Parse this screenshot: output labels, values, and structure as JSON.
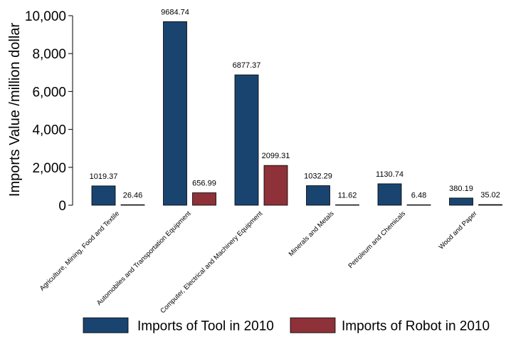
{
  "chart_data": {
    "type": "bar",
    "title": "",
    "xlabel": "",
    "ylabel": "Imports Value /million dollar",
    "ylim": [
      0,
      10000
    ],
    "yticks": [
      0,
      2000,
      4000,
      6000,
      8000,
      10000
    ],
    "ytick_labels": [
      "0",
      "2,000",
      "4,000",
      "6,000",
      "8,000",
      "10,000"
    ],
    "grid": false,
    "legend_position": "bottom",
    "categories": [
      "Agriculture, Mining, Food and Textile",
      "Automobiles and Transportation Equipment",
      "Computer, Electrical and Machinery Equipment",
      "Minerals and Metals",
      "Petroleum and Chemicals",
      "Wood and Paper"
    ],
    "series": [
      {
        "name": "Imports of Tool in 2010",
        "color": "#1a4470",
        "values": [
          1019.37,
          9684.74,
          6877.37,
          1032.29,
          1130.74,
          380.19
        ],
        "labels": [
          "1019.37",
          "9684.74",
          "6877.37",
          "1032.29",
          "1130.74",
          "380.19"
        ]
      },
      {
        "name": "Imports of Robot in 2010",
        "color": "#8e3139",
        "values": [
          26.46,
          656.99,
          2099.31,
          11.62,
          6.48,
          35.02
        ],
        "labels": [
          "26.46",
          "656.99",
          "2099.31",
          "11.62",
          "6.48",
          "35.02"
        ]
      }
    ]
  }
}
